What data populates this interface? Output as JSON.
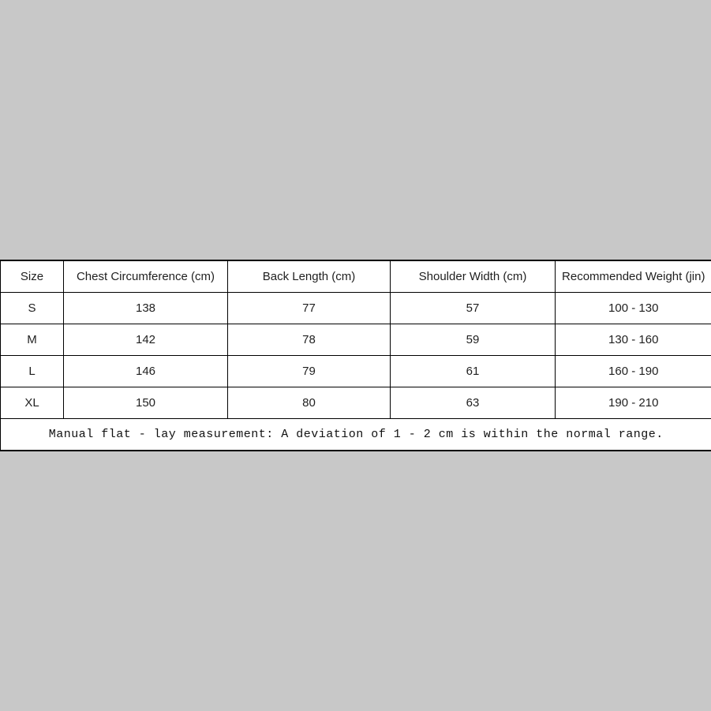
{
  "page": {
    "background_color": "#c8c8c8",
    "panel_color": "#ffffff",
    "border_color": "#000000",
    "text_color": "#1f1f1f"
  },
  "chart_data": {
    "type": "table",
    "columns": [
      "Size",
      "Chest Circumference (cm)",
      "Back Length (cm)",
      "Shoulder Width (cm)",
      "Recommended Weight (jin)"
    ],
    "rows": [
      [
        "S",
        "138",
        "77",
        "57",
        "100 - 130"
      ],
      [
        "M",
        "142",
        "78",
        "59",
        "130 - 160"
      ],
      [
        "L",
        "146",
        "79",
        "61",
        "160 - 190"
      ],
      [
        "XL",
        "150",
        "80",
        "63",
        "190 - 210"
      ]
    ],
    "footnote": "Manual flat - lay measurement: A deviation of 1 - 2 cm is within the normal range."
  }
}
